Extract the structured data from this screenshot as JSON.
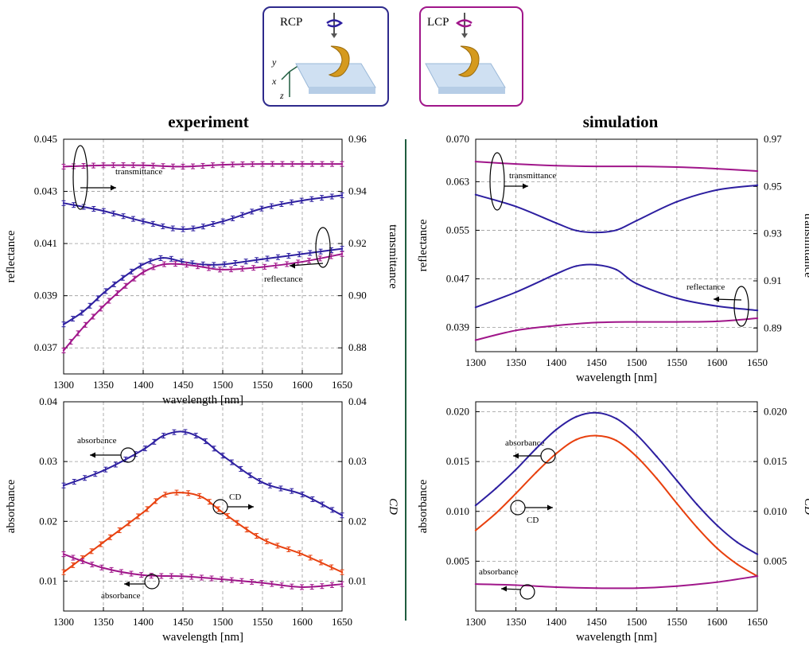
{
  "colors": {
    "rcp": "#2d1fa0",
    "lcp": "#a0168a",
    "cd": "#e8400e",
    "divider": "#1f5c3f",
    "grid": "#999999"
  },
  "legend": {
    "rcp_label": "RCP",
    "lcp_label": "LCP",
    "axes": {
      "x": "x",
      "y": "y",
      "z": "z"
    }
  },
  "columns": {
    "experiment_title": "experiment",
    "simulation_title": "simulation"
  },
  "chart_data": [
    {
      "id": "exp-top",
      "type": "line",
      "xlabel": "wavelength [nm]",
      "ylabel": "reflectance",
      "ylabel_right": "transmittance",
      "xlim": [
        1300,
        1650
      ],
      "ylim": [
        0.036,
        0.045
      ],
      "ylim_right": [
        0.87,
        0.96
      ],
      "x_ticks": [
        "1300",
        "1350",
        "1400",
        "1450",
        "1500",
        "1550",
        "1600",
        "1650"
      ],
      "y_ticks": [
        "0.037",
        "0.039",
        "0.041",
        "0.043",
        "0.045"
      ],
      "y_ticks_right": [
        "0.88",
        "0.90",
        "0.92",
        "0.94",
        "0.96"
      ],
      "grid": true,
      "annotations": [
        "transmittance",
        "reflectance"
      ],
      "series": [
        {
          "axis": "right",
          "color": "lcp",
          "error_bars": true,
          "x": [
            1300,
            1350,
            1400,
            1450,
            1500,
            1550,
            1600,
            1650
          ],
          "values": [
            0.9495,
            0.95,
            0.95,
            0.9495,
            0.9502,
            0.9505,
            0.9505,
            0.9505
          ]
        },
        {
          "axis": "right",
          "color": "rcp",
          "error_bars": true,
          "x": [
            1300,
            1350,
            1400,
            1450,
            1500,
            1550,
            1600,
            1650
          ],
          "values": [
            0.9355,
            0.9325,
            0.9285,
            0.9255,
            0.9285,
            0.9335,
            0.9365,
            0.9385
          ]
        },
        {
          "axis": "left",
          "color": "rcp",
          "error_bars": true,
          "x": [
            1300,
            1325,
            1350,
            1375,
            1400,
            1425,
            1450,
            1475,
            1500,
            1550,
            1600,
            1650
          ],
          "values": [
            0.0379,
            0.0384,
            0.0391,
            0.0397,
            0.0402,
            0.04045,
            0.0403,
            0.0402,
            0.0402,
            0.0404,
            0.0406,
            0.0408
          ]
        },
        {
          "axis": "left",
          "color": "lcp",
          "error_bars": true,
          "x": [
            1300,
            1325,
            1350,
            1375,
            1400,
            1425,
            1450,
            1475,
            1500,
            1550,
            1600,
            1650
          ],
          "values": [
            0.0369,
            0.0378,
            0.0386,
            0.0393,
            0.0399,
            0.0402,
            0.0402,
            0.0401,
            0.04,
            0.0401,
            0.0403,
            0.0406
          ]
        }
      ]
    },
    {
      "id": "exp-bottom",
      "type": "line",
      "xlabel": "wavelength [nm]",
      "ylabel": "absorbance",
      "ylabel_right": "CD",
      "xlim": [
        1300,
        1650
      ],
      "ylim": [
        0.005,
        0.04
      ],
      "ylim_right": [
        0.005,
        0.04
      ],
      "x_ticks": [
        "1300",
        "1350",
        "1400",
        "1450",
        "1500",
        "1550",
        "1600",
        "1650"
      ],
      "y_ticks": [
        "0.01",
        "0.02",
        "0.03",
        "0.04"
      ],
      "y_ticks_right": [
        "0.01",
        "0.02",
        "0.03",
        "0.04"
      ],
      "grid": true,
      "annotations": [
        "absorbance",
        "CD",
        "absorbance"
      ],
      "series": [
        {
          "axis": "left",
          "color": "rcp",
          "error_bars": true,
          "x": [
            1300,
            1350,
            1400,
            1425,
            1450,
            1475,
            1500,
            1550,
            1600,
            1650
          ],
          "values": [
            0.026,
            0.0285,
            0.032,
            0.0343,
            0.035,
            0.0337,
            0.031,
            0.0265,
            0.0245,
            0.021
          ]
        },
        {
          "axis": "right",
          "color": "cd",
          "error_bars": true,
          "x": [
            1300,
            1350,
            1400,
            1425,
            1450,
            1475,
            1500,
            1550,
            1600,
            1650
          ],
          "values": [
            0.0115,
            0.0165,
            0.0215,
            0.0243,
            0.0248,
            0.024,
            0.0215,
            0.017,
            0.0145,
            0.0115
          ]
        },
        {
          "axis": "left",
          "color": "lcp",
          "error_bars": true,
          "x": [
            1300,
            1350,
            1400,
            1450,
            1500,
            1550,
            1600,
            1650
          ],
          "values": [
            0.0145,
            0.0122,
            0.011,
            0.0108,
            0.0103,
            0.0097,
            0.009,
            0.0095
          ]
        }
      ]
    },
    {
      "id": "sim-top",
      "type": "line",
      "xlabel": "wavelength [nm]",
      "ylabel": "reflectance",
      "ylabel_right": "transmittance",
      "xlim": [
        1300,
        1650
      ],
      "ylim": [
        0.035,
        0.07
      ],
      "ylim_right": [
        0.88,
        0.97
      ],
      "x_ticks": [
        "1300",
        "1350",
        "1400",
        "1450",
        "1500",
        "1550",
        "1600",
        "1650"
      ],
      "y_ticks": [
        "0.039",
        "0.047",
        "0.055",
        "0.063",
        "0.070"
      ],
      "y_ticks_right": [
        "0.89",
        "0.91",
        "0.93",
        "0.95",
        "0.97"
      ],
      "grid": true,
      "annotations": [
        "transmittance",
        "reflectance"
      ],
      "series": [
        {
          "axis": "right",
          "color": "lcp",
          "error_bars": false,
          "x": [
            1300,
            1350,
            1400,
            1450,
            1500,
            1550,
            1600,
            1650
          ],
          "values": [
            0.9605,
            0.9595,
            0.9588,
            0.9585,
            0.9585,
            0.9582,
            0.9575,
            0.9565
          ]
        },
        {
          "axis": "right",
          "color": "rcp",
          "error_bars": false,
          "x": [
            1300,
            1350,
            1400,
            1425,
            1450,
            1475,
            1500,
            1550,
            1600,
            1650
          ],
          "values": [
            0.9465,
            0.9415,
            0.9345,
            0.9313,
            0.9305,
            0.9315,
            0.9355,
            0.9435,
            0.9485,
            0.9505
          ]
        },
        {
          "axis": "left",
          "color": "rcp",
          "error_bars": false,
          "x": [
            1300,
            1350,
            1400,
            1425,
            1450,
            1475,
            1500,
            1550,
            1600,
            1650
          ],
          "values": [
            0.0423,
            0.0448,
            0.0478,
            0.0491,
            0.0493,
            0.0485,
            0.0462,
            0.0438,
            0.0425,
            0.0418
          ]
        },
        {
          "axis": "left",
          "color": "lcp",
          "error_bars": false,
          "x": [
            1300,
            1350,
            1400,
            1450,
            1500,
            1550,
            1600,
            1650
          ],
          "values": [
            0.0369,
            0.0385,
            0.0393,
            0.0398,
            0.0399,
            0.0399,
            0.04,
            0.0405
          ]
        }
      ]
    },
    {
      "id": "sim-bottom",
      "type": "line",
      "xlabel": "wavelength [nm]",
      "ylabel": "absorbance",
      "ylabel_right": "CD",
      "xlim": [
        1300,
        1650
      ],
      "ylim": [
        0.0,
        0.021
      ],
      "ylim_right": [
        0.0,
        0.021
      ],
      "x_ticks": [
        "1300",
        "1350",
        "1400",
        "1450",
        "1500",
        "1550",
        "1600",
        "1650"
      ],
      "y_ticks": [
        "0.005",
        "0.010",
        "0.015",
        "0.020"
      ],
      "y_ticks_right": [
        "0.005",
        "0.010",
        "0.015",
        "0.020"
      ],
      "grid": true,
      "annotations": [
        "absorbance",
        "CD",
        "absorbance"
      ],
      "series": [
        {
          "axis": "left",
          "color": "rcp",
          "error_bars": false,
          "x": [
            1300,
            1325,
            1350,
            1375,
            1400,
            1425,
            1450,
            1475,
            1500,
            1525,
            1550,
            1575,
            1600,
            1625,
            1650
          ],
          "values": [
            0.0106,
            0.0123,
            0.0142,
            0.0163,
            0.0182,
            0.0195,
            0.0199,
            0.0193,
            0.0177,
            0.0155,
            0.0131,
            0.0107,
            0.0086,
            0.0069,
            0.0057
          ]
        },
        {
          "axis": "right",
          "color": "cd",
          "error_bars": false,
          "x": [
            1300,
            1325,
            1350,
            1375,
            1400,
            1425,
            1450,
            1475,
            1500,
            1525,
            1550,
            1575,
            1600,
            1625,
            1650
          ],
          "values": [
            0.0081,
            0.0098,
            0.0118,
            0.0139,
            0.0158,
            0.0172,
            0.0176,
            0.0171,
            0.0155,
            0.0133,
            0.0108,
            0.0084,
            0.0063,
            0.0047,
            0.0035
          ]
        },
        {
          "axis": "left",
          "color": "lcp",
          "error_bars": false,
          "x": [
            1300,
            1350,
            1400,
            1450,
            1500,
            1550,
            1600,
            1650
          ],
          "values": [
            0.0027,
            0.0026,
            0.0024,
            0.0023,
            0.0023,
            0.0025,
            0.0029,
            0.0035
          ]
        }
      ]
    }
  ]
}
